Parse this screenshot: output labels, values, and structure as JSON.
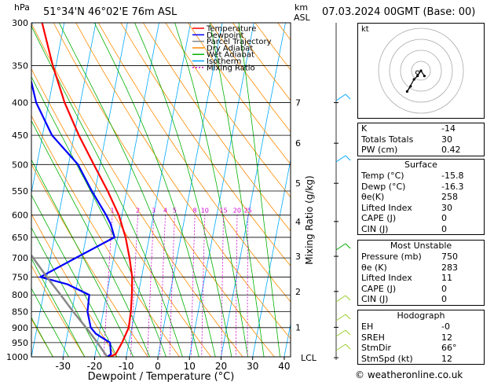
{
  "header": {
    "hpa_label": "hPa",
    "location": "51°34'N  46°02'E  76m  ASL",
    "km_label": "km",
    "asl_label": "ASL",
    "datetime": "07.03.2024  00GMT  (Base: 00)"
  },
  "chart_data": {
    "type": "skew-t log-p",
    "xlabel": "Dewpoint / Temperature (°C)",
    "ylabel": "Mixing Ratio (g/kg)",
    "pressure_levels": [
      300,
      350,
      400,
      450,
      500,
      550,
      600,
      650,
      700,
      750,
      800,
      850,
      900,
      950,
      1000
    ],
    "x_ticks": [
      -30,
      -20,
      -10,
      0,
      10,
      20,
      30,
      40
    ],
    "ylim_hpa": [
      1000,
      300
    ],
    "xlim_c": [
      -40,
      42
    ],
    "km_ticks": [
      {
        "label": "7",
        "p": 400
      },
      {
        "label": "6",
        "p": 463
      },
      {
        "label": "5",
        "p": 535
      },
      {
        "label": "4",
        "p": 614
      },
      {
        "label": "3",
        "p": 696
      },
      {
        "label": "2",
        "p": 790
      },
      {
        "label": "1",
        "p": 899
      },
      {
        "label": "LCL",
        "p": 1003
      }
    ],
    "mixing_ratio_labels": [
      "1",
      "2",
      "3",
      "4",
      "5",
      "8",
      "10",
      "15",
      "20",
      "25"
    ],
    "mixing_ratio_values": [
      1,
      2,
      3,
      4,
      5,
      8,
      10,
      15,
      20,
      25
    ],
    "legend": [
      "Temperature",
      "Dewpoint",
      "Parcel Trajectory",
      "Dry Adiabat",
      "Wet Adiabat",
      "Isotherm",
      "Mixing Ratio"
    ],
    "legend_colors": [
      "#ff0000",
      "#0000ff",
      "#888888",
      "#ff8c00",
      "#00b000",
      "#00aaff",
      "#d000d0"
    ],
    "series": [
      {
        "name": "Temperature",
        "color": "#ff0000",
        "points": [
          [
            1003,
            -15.8
          ],
          [
            990,
            -13.5
          ],
          [
            950,
            -12.2
          ],
          [
            900,
            -11.0
          ],
          [
            850,
            -11.3
          ],
          [
            800,
            -12.0
          ],
          [
            750,
            -13.0
          ],
          [
            700,
            -15.0
          ],
          [
            650,
            -17.5
          ],
          [
            600,
            -21.0
          ],
          [
            550,
            -26.0
          ],
          [
            500,
            -32.0
          ],
          [
            450,
            -38.5
          ],
          [
            400,
            -45.0
          ],
          [
            350,
            -51.0
          ],
          [
            300,
            -57.0
          ]
        ]
      },
      {
        "name": "Dewpoint",
        "color": "#0000ff",
        "points": [
          [
            1003,
            -16.3
          ],
          [
            990,
            -15.0
          ],
          [
            950,
            -16.0
          ],
          [
            920,
            -21.0
          ],
          [
            900,
            -23.0
          ],
          [
            850,
            -25.0
          ],
          [
            800,
            -25.5
          ],
          [
            770,
            -33.0
          ],
          [
            750,
            -42.0
          ],
          [
            700,
            -32.0
          ],
          [
            650,
            -21.0
          ],
          [
            620,
            -23.0
          ],
          [
            600,
            -25.0
          ],
          [
            550,
            -31.0
          ],
          [
            500,
            -37.0
          ],
          [
            450,
            -47.0
          ],
          [
            400,
            -54.0
          ],
          [
            350,
            -59.0
          ],
          [
            300,
            -61.0
          ]
        ]
      },
      {
        "name": "Parcel Trajectory",
        "color": "#888888",
        "points": [
          [
            1003,
            -15.8
          ],
          [
            950,
            -20.0
          ],
          [
            900,
            -24.5
          ],
          [
            850,
            -29.5
          ],
          [
            800,
            -34.5
          ],
          [
            750,
            -40.0
          ],
          [
            700,
            -45.5
          ],
          [
            650,
            -51.5
          ],
          [
            600,
            -58.0
          ]
        ]
      }
    ],
    "stats": [
      {
        "label": "K",
        "value": "-14"
      },
      {
        "label": "Totals Totals",
        "value": "30"
      },
      {
        "label": "PW (cm)",
        "value": "0.42"
      }
    ],
    "surface": {
      "title": "Surface",
      "rows": [
        {
          "label": "Temp (°C)",
          "value": "-15.8"
        },
        {
          "label": "Dewp (°C)",
          "value": "-16.3"
        },
        {
          "label": "θe(K)",
          "value": "258"
        },
        {
          "label": "Lifted Index",
          "value": "30"
        },
        {
          "label": "CAPE (J)",
          "value": "0"
        },
        {
          "label": "CIN (J)",
          "value": "0"
        }
      ]
    },
    "most_unstable": {
      "title": "Most Unstable",
      "rows": [
        {
          "label": "Pressure (mb)",
          "value": "750"
        },
        {
          "label": "θe (K)",
          "value": "283"
        },
        {
          "label": "Lifted Index",
          "value": "11"
        },
        {
          "label": "CAPE (J)",
          "value": "0"
        },
        {
          "label": "CIN (J)",
          "value": "0"
        }
      ]
    },
    "hodograph": {
      "title": "Hodograph",
      "rows": [
        {
          "label": "EH",
          "value": "-0"
        },
        {
          "label": "SREH",
          "value": "12"
        },
        {
          "label": "StmDir",
          "value": "66°"
        },
        {
          "label": "StmSpd (kt)",
          "value": "12"
        }
      ]
    },
    "hodograph_plot": {
      "label": "kt",
      "points_kt": [
        [
          -6,
          -9
        ],
        [
          -8,
          -12
        ],
        [
          -4,
          -5
        ],
        [
          -2,
          -3
        ],
        [
          0,
          0
        ],
        [
          2,
          -3
        ]
      ],
      "storm_motion_kt": [
        -2,
        -1
      ]
    }
  },
  "footer": {
    "copyright": "© weatheronline.co.uk"
  }
}
